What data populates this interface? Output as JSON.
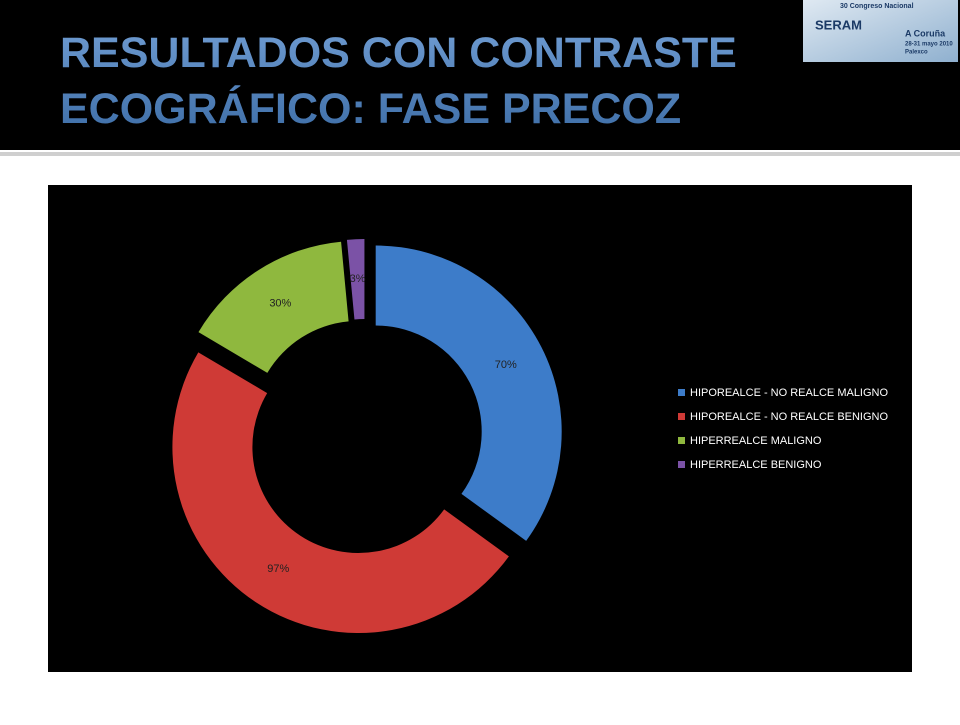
{
  "title": "RESULTADOS CON CONTRASTE ECOGRÁFICO: FASE PRECOZ",
  "logo": {
    "lines": [
      "30 Congreso Nacional",
      "SERAM",
      "A Coruña",
      "28-31 mayo 2010",
      "Palexco"
    ]
  },
  "chart_data": {
    "type": "doughnut",
    "categories": [
      "HIPOREALCE - NO REALCE MALIGNO",
      "HIPOREALCE - NO REALCE BENIGNO",
      "HIPERREALCE MALIGNO",
      "HIPERREALCE BENIGNO"
    ],
    "values": [
      70,
      97,
      30,
      3
    ],
    "value_labels": [
      "70%",
      "97%",
      "30%",
      "3%"
    ],
    "colors": [
      "#3d7cc9",
      "#cf3a36",
      "#8fb83e",
      "#7b52a6"
    ],
    "legend": "right"
  }
}
